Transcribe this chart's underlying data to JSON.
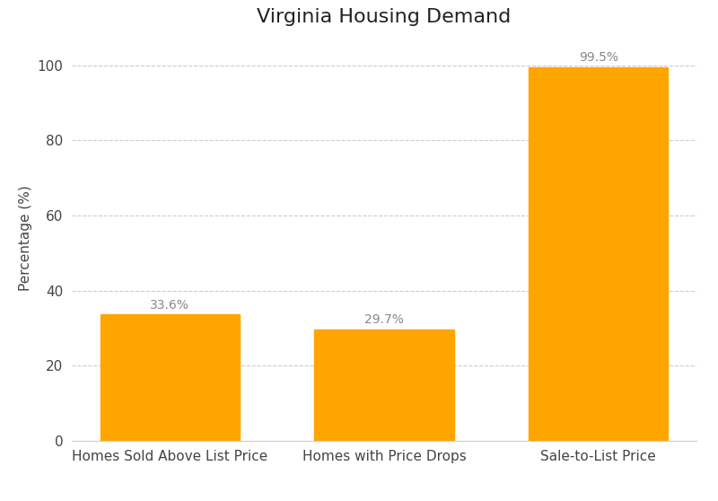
{
  "title": "Virginia Housing Demand",
  "categories": [
    "Homes Sold Above List Price",
    "Homes with Price Drops",
    "Sale-to-List Price"
  ],
  "values": [
    33.6,
    29.7,
    99.5
  ],
  "bar_color": "#FFA500",
  "ylabel": "Percentage (%)",
  "ylim": [
    0,
    108
  ],
  "yticks": [
    0,
    20,
    40,
    60,
    80,
    100
  ],
  "grid_color": "#cccccc",
  "grid_linestyle": "--",
  "label_color": "#888888",
  "title_fontsize": 16,
  "label_fontsize": 11,
  "tick_fontsize": 11,
  "annotation_fontsize": 10,
  "background_color": "#ffffff",
  "bar_width": 0.65,
  "figwidth": 8.0,
  "figheight": 5.58
}
